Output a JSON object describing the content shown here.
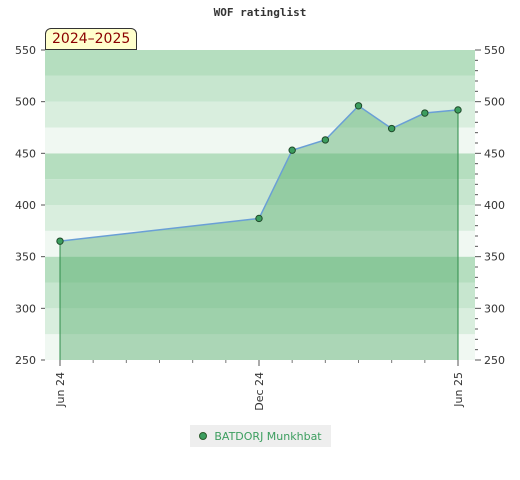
{
  "chart_data": {
    "type": "area",
    "title": "WOF ratinglist",
    "badge": "2024–2025",
    "xlabel": "",
    "ylabel": "",
    "ylim": [
      250,
      550
    ],
    "y_ticks": [
      250,
      300,
      350,
      400,
      450,
      500,
      550
    ],
    "x_range": [
      "2024-06",
      "2025-06"
    ],
    "x_tick_labels": [
      {
        "label": "Jun 24",
        "x": "2024-06"
      },
      {
        "label": "Dec 24",
        "x": "2024-12"
      },
      {
        "label": "Jun 25",
        "x": "2025-06"
      }
    ],
    "grid": true,
    "legend_position": "bottom-center",
    "series": [
      {
        "name": "BATDORJ Munkhbat",
        "x": [
          "2024-06",
          "2024-12",
          "2025-01",
          "2025-02",
          "2025-03",
          "2025-04",
          "2025-05",
          "2025-06"
        ],
        "y": [
          365,
          387,
          453,
          463,
          496,
          474,
          489,
          492
        ],
        "line_color": "#6a9fd6",
        "fill_color": "#56ad6d",
        "marker_color": "#3c9e5f"
      }
    ]
  }
}
